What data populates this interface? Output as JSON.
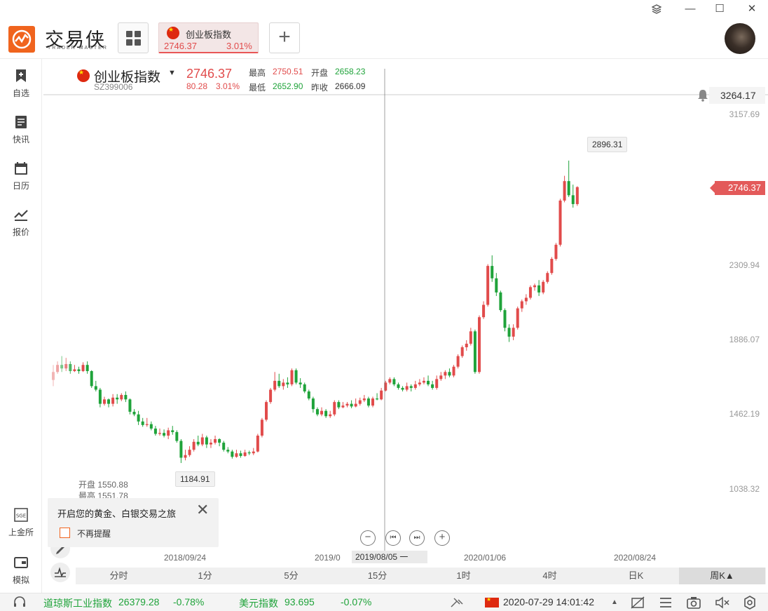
{
  "app": {
    "brand_name": "交易侠",
    "brand_sub": "TRADER MASTER"
  },
  "tabs": [
    {
      "label": "创业板指数",
      "price": "2746.37",
      "change_pct": "3.01%"
    }
  ],
  "sidebar": {
    "items": [
      {
        "label": "自选",
        "icon": "bookmark-plus-icon"
      },
      {
        "label": "快讯",
        "icon": "news-list-icon"
      },
      {
        "label": "日历",
        "icon": "calendar-icon"
      },
      {
        "label": "报价",
        "icon": "line-chart-icon"
      },
      {
        "label": "上金所",
        "icon": "sge-icon"
      },
      {
        "label": "模拟",
        "icon": "wallet-icon"
      }
    ]
  },
  "quote": {
    "name": "创业板指数",
    "code": "SZ399006",
    "price": "2746.37",
    "change": "80.28",
    "change_pct": "3.01%",
    "high_label": "最高",
    "high": "2750.51",
    "low_label": "最低",
    "low": "2652.90",
    "open_label": "开盘",
    "open": "2658.23",
    "prev_close_label": "昨收",
    "prev_close": "2666.09"
  },
  "chart_data": {
    "type": "candlestick",
    "period": "周K",
    "y_axis_ticks": [
      "3157.69",
      "2309.94",
      "1886.07",
      "1462.19",
      "1038.32"
    ],
    "x_axis_ticks": [
      "2018/09/24",
      "2019/0",
      "2020/01/06",
      "2020/08/24"
    ],
    "crosshair_price": "3264.17",
    "crosshair_date": "2019/08/05 一",
    "last_price": "2746.37",
    "max_label": "2896.31",
    "min_label": "1184.91",
    "hover_ohlc": {
      "open_label": "开盘",
      "open": "1550.88",
      "high_label": "最高",
      "high": "1551.78"
    },
    "candles": [
      [
        1655,
        1700,
        1740,
        1620
      ],
      [
        1700,
        1740,
        1760,
        1690
      ],
      [
        1740,
        1720,
        1790,
        1700
      ],
      [
        1720,
        1745,
        1780,
        1705
      ],
      [
        1745,
        1705,
        1760,
        1690
      ],
      [
        1705,
        1715,
        1740,
        1700
      ],
      [
        1715,
        1705,
        1730,
        1690
      ],
      [
        1705,
        1740,
        1755,
        1700
      ],
      [
        1740,
        1705,
        1760,
        1690
      ],
      [
        1705,
        1620,
        1710,
        1610
      ],
      [
        1620,
        1600,
        1650,
        1590
      ],
      [
        1600,
        1520,
        1610,
        1500
      ],
      [
        1520,
        1545,
        1560,
        1510
      ],
      [
        1545,
        1520,
        1550,
        1500
      ],
      [
        1520,
        1555,
        1575,
        1505
      ],
      [
        1555,
        1545,
        1575,
        1520
      ],
      [
        1545,
        1570,
        1580,
        1535
      ],
      [
        1570,
        1545,
        1590,
        1530
      ],
      [
        1545,
        1475,
        1550,
        1460
      ],
      [
        1475,
        1460,
        1490,
        1450
      ],
      [
        1460,
        1420,
        1480,
        1400
      ],
      [
        1420,
        1400,
        1440,
        1390
      ],
      [
        1400,
        1405,
        1440,
        1390
      ],
      [
        1405,
        1380,
        1420,
        1370
      ],
      [
        1380,
        1350,
        1395,
        1340
      ],
      [
        1350,
        1355,
        1380,
        1340
      ],
      [
        1355,
        1340,
        1375,
        1330
      ],
      [
        1340,
        1370,
        1385,
        1320
      ],
      [
        1370,
        1360,
        1395,
        1345
      ],
      [
        1360,
        1310,
        1370,
        1300
      ],
      [
        1310,
        1215,
        1320,
        1185
      ],
      [
        1215,
        1230,
        1260,
        1200
      ],
      [
        1230,
        1260,
        1280,
        1220
      ],
      [
        1260,
        1305,
        1320,
        1250
      ],
      [
        1305,
        1290,
        1340,
        1280
      ],
      [
        1290,
        1330,
        1350,
        1280
      ],
      [
        1330,
        1290,
        1340,
        1270
      ],
      [
        1290,
        1300,
        1320,
        1270
      ],
      [
        1300,
        1320,
        1340,
        1290
      ],
      [
        1320,
        1300,
        1325,
        1280
      ],
      [
        1300,
        1260,
        1310,
        1250
      ],
      [
        1260,
        1250,
        1275,
        1240
      ],
      [
        1250,
        1220,
        1260,
        1210
      ],
      [
        1220,
        1240,
        1260,
        1215
      ],
      [
        1240,
        1225,
        1255,
        1215
      ],
      [
        1225,
        1245,
        1260,
        1220
      ],
      [
        1245,
        1240,
        1255,
        1230
      ],
      [
        1240,
        1250,
        1270,
        1230
      ],
      [
        1250,
        1340,
        1350,
        1245
      ],
      [
        1340,
        1430,
        1440,
        1330
      ],
      [
        1430,
        1530,
        1540,
        1420
      ],
      [
        1530,
        1600,
        1610,
        1520
      ],
      [
        1600,
        1650,
        1700,
        1590
      ],
      [
        1650,
        1620,
        1690,
        1610
      ],
      [
        1620,
        1640,
        1660,
        1600
      ],
      [
        1640,
        1630,
        1670,
        1610
      ],
      [
        1630,
        1710,
        1720,
        1620
      ],
      [
        1710,
        1640,
        1720,
        1630
      ],
      [
        1640,
        1630,
        1665,
        1610
      ],
      [
        1630,
        1590,
        1640,
        1580
      ],
      [
        1590,
        1550,
        1600,
        1540
      ],
      [
        1550,
        1490,
        1560,
        1470
      ],
      [
        1490,
        1460,
        1500,
        1450
      ],
      [
        1460,
        1480,
        1500,
        1450
      ],
      [
        1480,
        1450,
        1490,
        1440
      ],
      [
        1450,
        1460,
        1480,
        1440
      ],
      [
        1460,
        1530,
        1540,
        1450
      ],
      [
        1530,
        1500,
        1540,
        1490
      ],
      [
        1500,
        1510,
        1530,
        1495
      ],
      [
        1510,
        1520,
        1530,
        1500
      ],
      [
        1520,
        1505,
        1540,
        1495
      ],
      [
        1505,
        1520,
        1550,
        1500
      ],
      [
        1520,
        1540,
        1555,
        1510
      ],
      [
        1540,
        1550,
        1570,
        1530
      ],
      [
        1550,
        1510,
        1560,
        1500
      ],
      [
        1510,
        1550,
        1560,
        1500
      ],
      [
        1550,
        1545,
        1580,
        1540
      ],
      [
        1545,
        1595,
        1610,
        1540
      ],
      [
        1595,
        1640,
        1650,
        1590
      ],
      [
        1640,
        1660,
        1670,
        1630
      ],
      [
        1660,
        1630,
        1670,
        1620
      ],
      [
        1630,
        1610,
        1640,
        1600
      ],
      [
        1610,
        1600,
        1620,
        1590
      ],
      [
        1600,
        1620,
        1640,
        1590
      ],
      [
        1620,
        1610,
        1630,
        1590
      ],
      [
        1610,
        1630,
        1650,
        1600
      ],
      [
        1630,
        1640,
        1660,
        1620
      ],
      [
        1640,
        1650,
        1670,
        1630
      ],
      [
        1650,
        1630,
        1680,
        1620
      ],
      [
        1630,
        1610,
        1650,
        1600
      ],
      [
        1610,
        1660,
        1680,
        1600
      ],
      [
        1660,
        1680,
        1700,
        1650
      ],
      [
        1680,
        1700,
        1710,
        1660
      ],
      [
        1700,
        1680,
        1720,
        1670
      ],
      [
        1680,
        1730,
        1740,
        1670
      ],
      [
        1730,
        1790,
        1800,
        1720
      ],
      [
        1790,
        1840,
        1850,
        1780
      ],
      [
        1840,
        1860,
        1880,
        1820
      ],
      [
        1860,
        1930,
        1950,
        1850
      ],
      [
        1930,
        1700,
        1940,
        1690
      ],
      [
        1700,
        2010,
        2020,
        1690
      ],
      [
        2010,
        2080,
        2100,
        2000
      ],
      [
        2080,
        2300,
        2310,
        2070
      ],
      [
        2300,
        2230,
        2360,
        2210
      ],
      [
        2230,
        2150,
        2260,
        2130
      ],
      [
        2150,
        2050,
        2160,
        2040
      ],
      [
        2050,
        1950,
        2060,
        1930
      ],
      [
        1950,
        1900,
        1970,
        1870
      ],
      [
        1900,
        1950,
        1970,
        1880
      ],
      [
        1950,
        2060,
        2070,
        1940
      ],
      [
        2060,
        2100,
        2110,
        2040
      ],
      [
        2100,
        2120,
        2140,
        2080
      ],
      [
        2120,
        2180,
        2190,
        2110
      ],
      [
        2180,
        2190,
        2200,
        2160
      ],
      [
        2190,
        2150,
        2220,
        2130
      ],
      [
        2150,
        2210,
        2220,
        2140
      ],
      [
        2210,
        2260,
        2270,
        2200
      ],
      [
        2260,
        2340,
        2350,
        2250
      ],
      [
        2340,
        2420,
        2430,
        2330
      ],
      [
        2420,
        2670,
        2680,
        2410
      ],
      [
        2670,
        2780,
        2810,
        2660
      ],
      [
        2780,
        2700,
        2896,
        2690
      ],
      [
        2700,
        2650,
        2760,
        2630
      ],
      [
        2650,
        2746,
        2751,
        2640
      ]
    ]
  },
  "promo": {
    "text": "开启您的黄金、白银交易之旅",
    "checkbox_label": "不再提醒"
  },
  "periods": [
    "分时",
    "1分",
    "5分",
    "15分",
    "1时",
    "4时",
    "日K",
    "周K▲"
  ],
  "status_bar": {
    "dow_label": "道琼斯工业指数",
    "dow_value": "26379.28",
    "dow_change": "-0.78%",
    "usd_label": "美元指数",
    "usd_value": "93.695",
    "usd_change": "-0.07%",
    "datetime": "2020-07-29 14:01:42"
  },
  "colors": {
    "up": "#e14b4b",
    "down": "#1fa33a",
    "accent": "#f0641e"
  }
}
